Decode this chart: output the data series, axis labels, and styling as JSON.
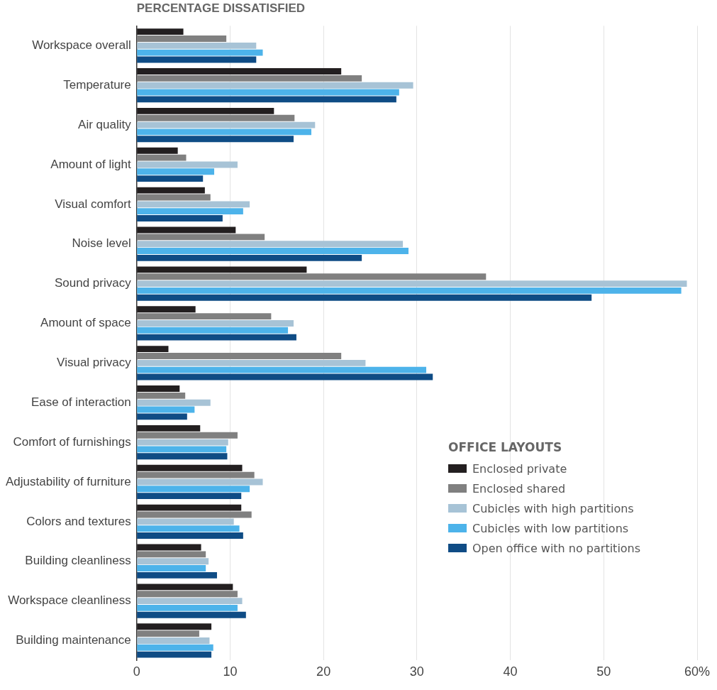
{
  "chart_data": {
    "type": "bar",
    "orientation": "horizontal",
    "title": "PERCENTAGE DISSATISFIED",
    "legend_title": "OFFICE LAYOUTS",
    "categories": [
      "Workspace overall",
      "Temperature",
      "Air quality",
      "Amount of light",
      "Visual comfort",
      "Noise level",
      "Sound privacy",
      "Amount of space",
      "Visual privacy",
      "Ease of interaction",
      "Comfort of furnishings",
      "Adjustability of furniture",
      "Colors and textures",
      "Building cleanliness",
      "Workspace cleanliness",
      "Building maintenance"
    ],
    "series": [
      {
        "name": "Enclosed private",
        "color": "#231f20",
        "values": [
          5.0,
          21.9,
          14.7,
          4.4,
          7.3,
          10.6,
          18.2,
          6.3,
          3.4,
          4.6,
          6.8,
          11.3,
          11.2,
          6.9,
          10.3,
          8.0
        ]
      },
      {
        "name": "Enclosed shared",
        "color": "#808080",
        "values": [
          9.6,
          24.1,
          16.9,
          5.3,
          7.9,
          13.7,
          37.4,
          14.4,
          21.9,
          5.2,
          10.8,
          12.6,
          12.3,
          7.4,
          10.8,
          6.7
        ]
      },
      {
        "name": "Cubicles with high partitions",
        "color": "#a7c3d6",
        "values": [
          12.8,
          29.6,
          19.1,
          10.8,
          12.1,
          28.5,
          58.9,
          16.8,
          24.5,
          7.9,
          9.8,
          13.5,
          10.4,
          7.7,
          11.3,
          7.8
        ]
      },
      {
        "name": "Cubicles with low partitions",
        "color": "#4db3ea",
        "values": [
          13.5,
          28.1,
          18.7,
          8.3,
          11.4,
          29.1,
          58.3,
          16.2,
          31.0,
          6.2,
          9.6,
          12.1,
          11.0,
          7.4,
          10.8,
          8.2
        ]
      },
      {
        "name": "Open office with no partitions",
        "color": "#0f4c85",
        "values": [
          12.8,
          27.8,
          16.8,
          7.1,
          9.2,
          24.1,
          48.7,
          17.1,
          31.7,
          5.4,
          9.7,
          11.2,
          11.4,
          8.6,
          11.7,
          8.0
        ]
      }
    ],
    "xlim": [
      0,
      60
    ],
    "xticks": [
      0,
      10,
      20,
      30,
      40,
      50,
      {
        "value": 60,
        "label": "60%"
      }
    ],
    "grid": "x",
    "legend": "right"
  }
}
